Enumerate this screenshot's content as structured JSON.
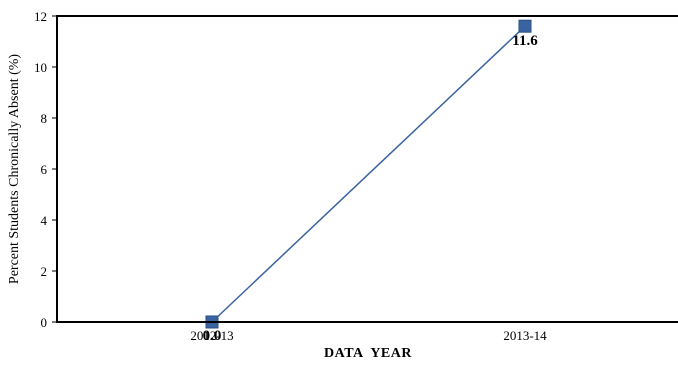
{
  "chart_data": {
    "type": "line",
    "categories": [
      "2012-13",
      "2013-14"
    ],
    "series": [
      {
        "values": [
          0.0,
          11.6
        ],
        "color": "#3a64a0"
      }
    ],
    "data_labels": [
      "0.0",
      "11.6"
    ],
    "xlabel": "DATA  YEAR",
    "ylabel": "Percent Students Chronically Absent (%)",
    "ylim": [
      0,
      12
    ],
    "yticks": [
      0,
      2,
      4,
      6,
      8,
      10,
      12
    ],
    "grid": false,
    "legend": "none"
  }
}
